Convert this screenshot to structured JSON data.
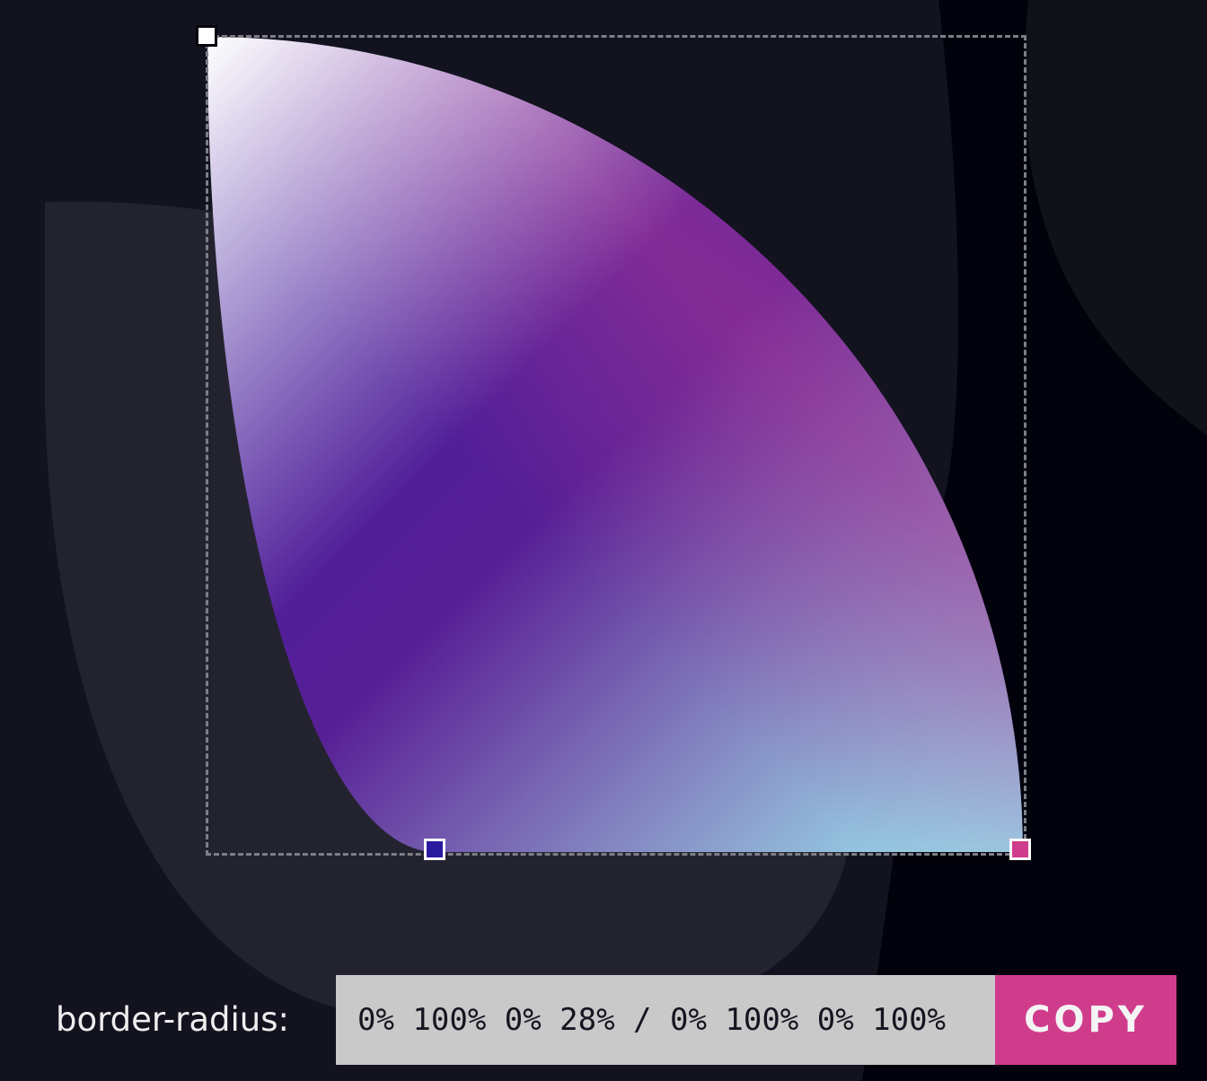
{
  "editor": {
    "shape_gradient_colors": [
      "#ffffff",
      "#3a1ba0",
      "#9a2f92",
      "#98ecf4"
    ],
    "handles": {
      "top_left_color": "#ffffff",
      "bottom_left_color": "#2a1aa0",
      "bottom_right_color": "#d03c8c"
    }
  },
  "output": {
    "label": "border-radius:",
    "value": "0% 100% 0% 28% / 0% 100% 0% 100%",
    "copy_label": "COPY"
  },
  "colors": {
    "background": "#02020c",
    "accent": "#d03c8c",
    "frame": "#7d7f87"
  }
}
